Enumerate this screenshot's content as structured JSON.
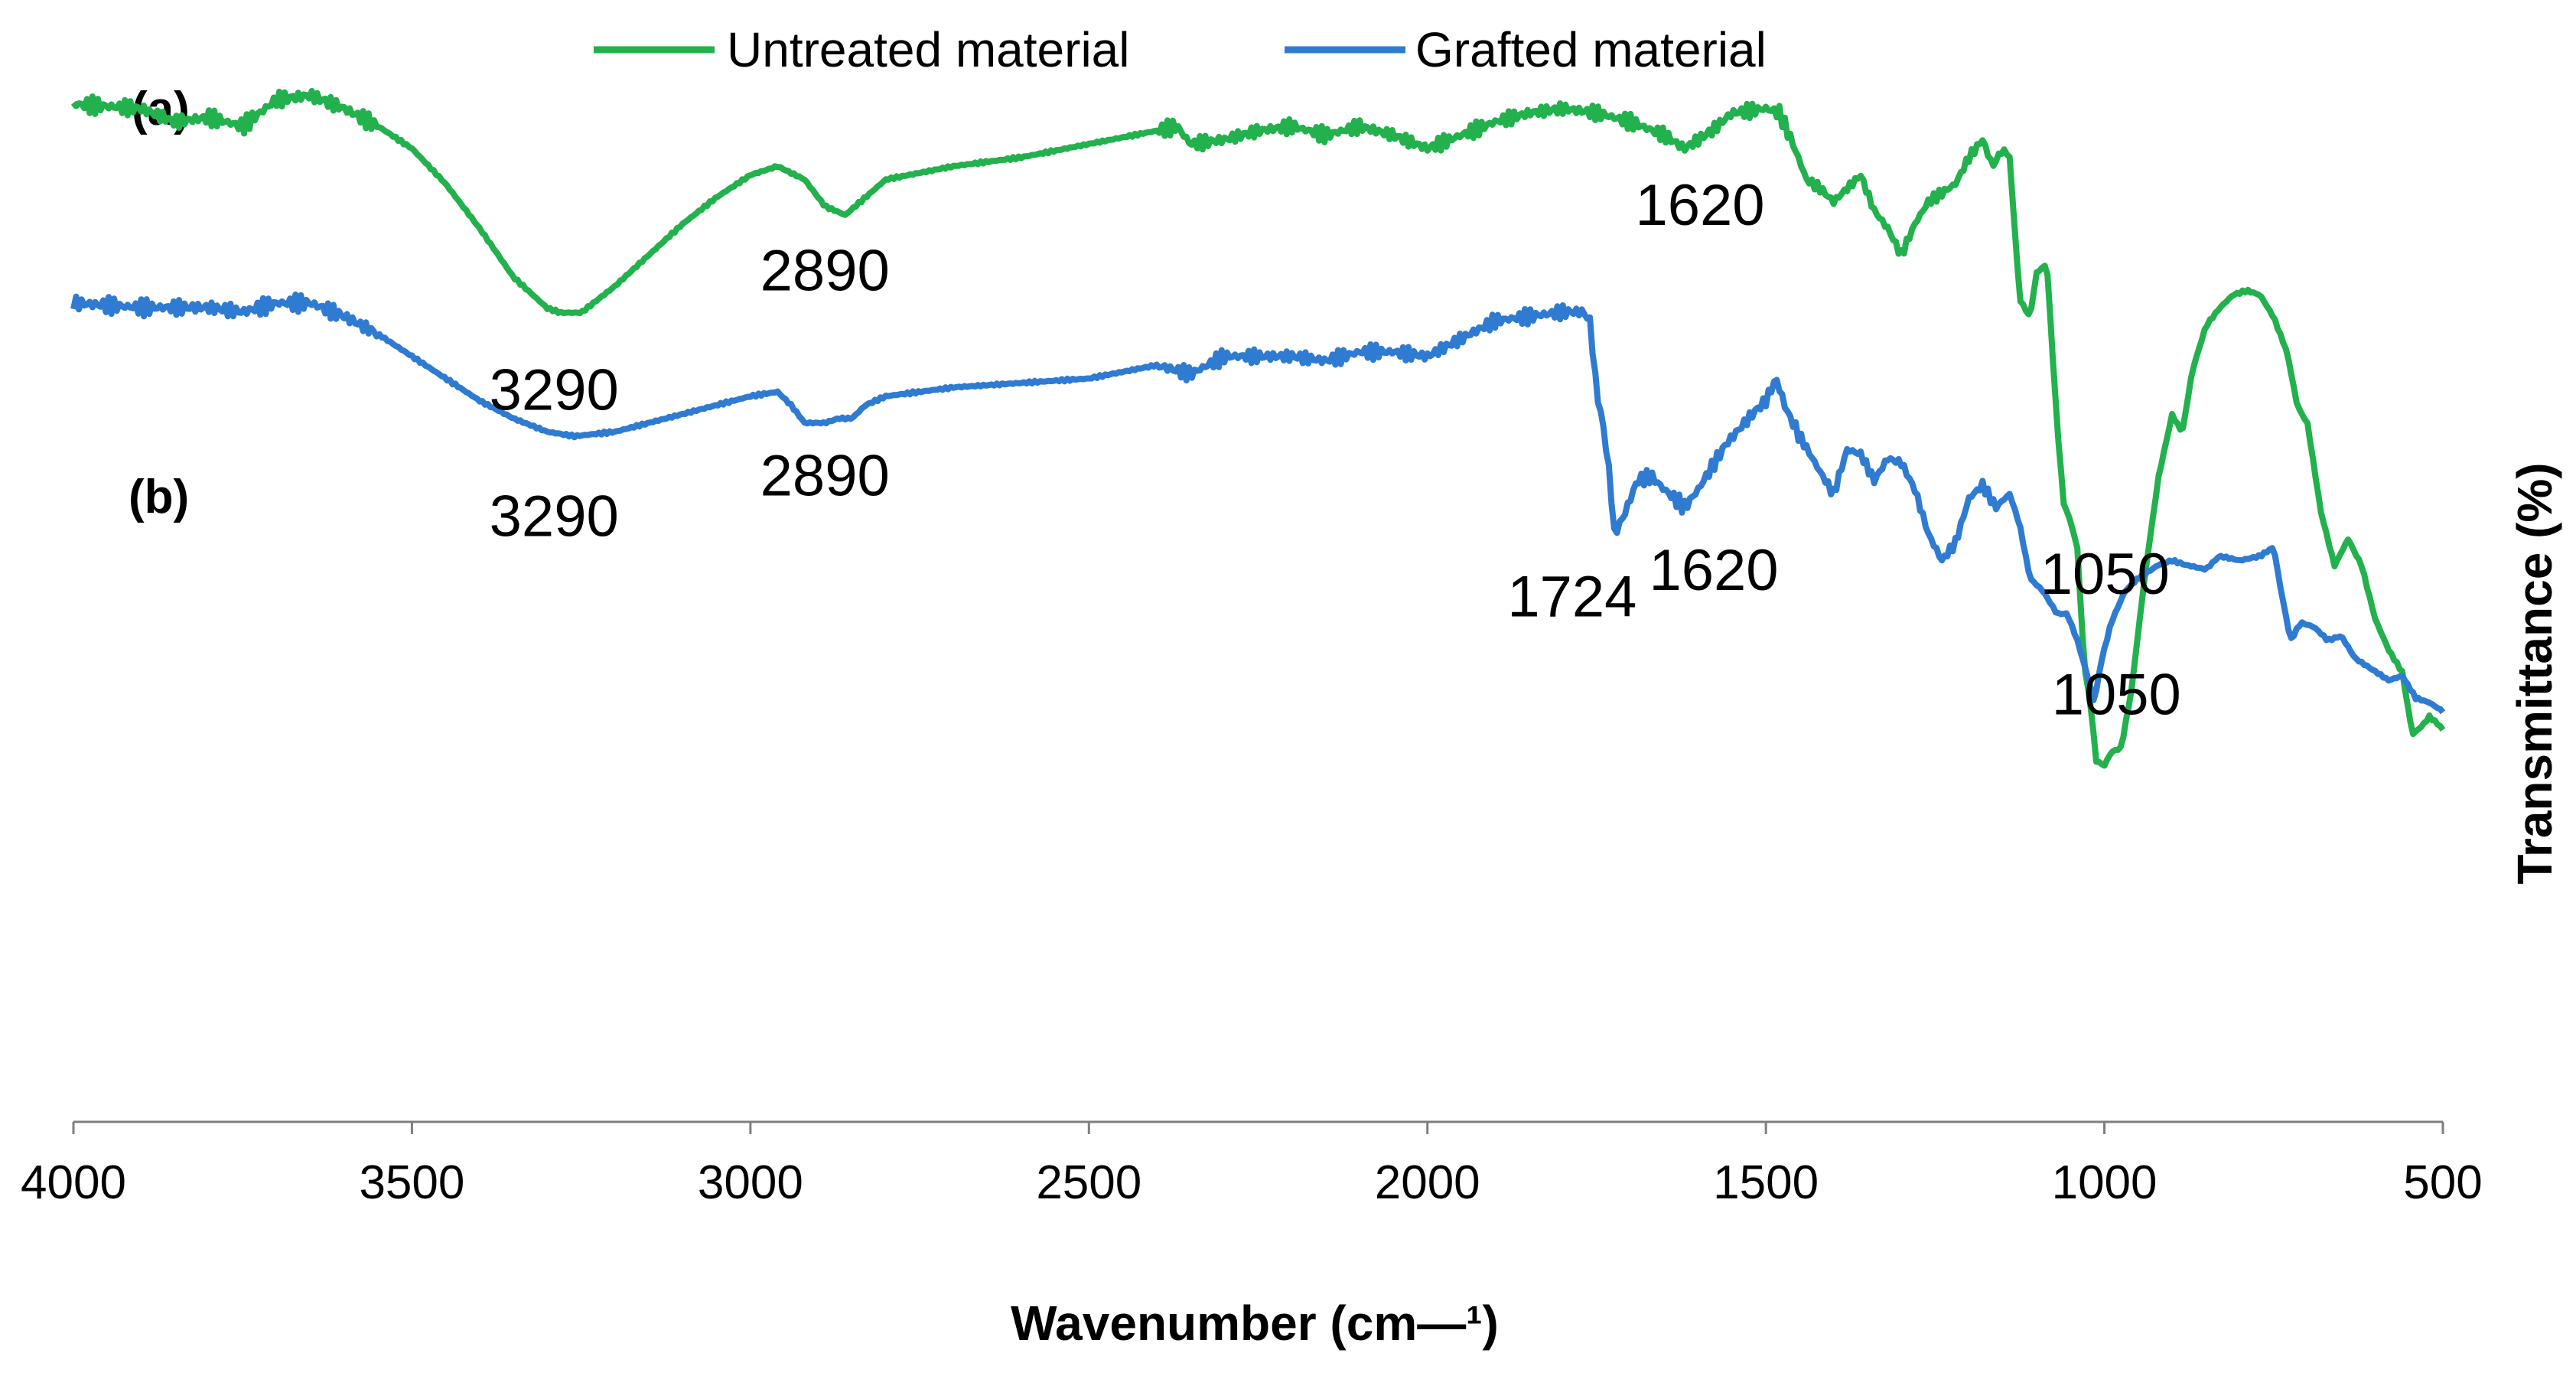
{
  "chart_data": {
    "type": "line",
    "title": "",
    "xlabel": "Wavenumber (cm—¹)",
    "ylabel": "Transmittance (%)",
    "xlim": [
      4000,
      500
    ],
    "x_reversed": true,
    "grid": false,
    "legend_position": "top-center",
    "ticks": {
      "x": [
        {
          "value": 4000,
          "label": "4000"
        },
        {
          "value": 3500,
          "label": "3500"
        },
        {
          "value": 3000,
          "label": "3000"
        },
        {
          "value": 2500,
          "label": "2500"
        },
        {
          "value": 2000,
          "label": "2000"
        },
        {
          "value": 1500,
          "label": "1500"
        },
        {
          "value": 1000,
          "label": "1000"
        },
        {
          "value": 500,
          "label": "500"
        }
      ]
    },
    "ylim": [
      0,
      100
    ],
    "series": [
      {
        "key": "a",
        "name": "Untreated material",
        "color": "#22b14c",
        "panel_label": "(a)",
        "points": [
          [
            4000,
            90.0
          ],
          [
            3900,
            89.5
          ],
          [
            3850,
            88.0
          ],
          [
            3800,
            88.5
          ],
          [
            3750,
            87.5
          ],
          [
            3700,
            90.5
          ],
          [
            3650,
            91.0
          ],
          [
            3600,
            89.5
          ],
          [
            3550,
            87.5
          ],
          [
            3500,
            85.0
          ],
          [
            3450,
            81.0
          ],
          [
            3400,
            76.0
          ],
          [
            3350,
            70.5
          ],
          [
            3300,
            67.0
          ],
          [
            3280,
            66.5
          ],
          [
            3250,
            66.5
          ],
          [
            3200,
            69.5
          ],
          [
            3150,
            73.0
          ],
          [
            3100,
            76.5
          ],
          [
            3050,
            79.5
          ],
          [
            3000,
            82.0
          ],
          [
            2960,
            83.0
          ],
          [
            2920,
            81.5
          ],
          [
            2890,
            78.5
          ],
          [
            2860,
            77.5
          ],
          [
            2830,
            79.5
          ],
          [
            2800,
            81.5
          ],
          [
            2700,
            83.0
          ],
          [
            2600,
            84.0
          ],
          [
            2500,
            85.5
          ],
          [
            2400,
            87.0
          ],
          [
            2370,
            87.5
          ],
          [
            2350,
            85.5
          ],
          [
            2300,
            86.0
          ],
          [
            2250,
            87.0
          ],
          [
            2200,
            87.5
          ],
          [
            2150,
            86.5
          ],
          [
            2100,
            87.5
          ],
          [
            2050,
            86.5
          ],
          [
            2000,
            85.0
          ],
          [
            1950,
            86.5
          ],
          [
            1900,
            88.0
          ],
          [
            1850,
            89.0
          ],
          [
            1800,
            89.5
          ],
          [
            1750,
            89.0
          ],
          [
            1700,
            88.0
          ],
          [
            1650,
            86.5
          ],
          [
            1620,
            85.0
          ],
          [
            1580,
            87.0
          ],
          [
            1550,
            89.0
          ],
          [
            1500,
            89.5
          ],
          [
            1480,
            89.0
          ],
          [
            1460,
            85.5
          ],
          [
            1440,
            81.5
          ],
          [
            1420,
            80.5
          ],
          [
            1400,
            79.0
          ],
          [
            1380,
            80.5
          ],
          [
            1360,
            82.0
          ],
          [
            1340,
            78.0
          ],
          [
            1320,
            76.0
          ],
          [
            1300,
            73.0
          ],
          [
            1280,
            76.5
          ],
          [
            1260,
            79.0
          ],
          [
            1220,
            81.0
          ],
          [
            1200,
            84.0
          ],
          [
            1180,
            86.0
          ],
          [
            1165,
            83.0
          ],
          [
            1150,
            85.0
          ],
          [
            1140,
            84.0
          ],
          [
            1125,
            68.0
          ],
          [
            1110,
            66.0
          ],
          [
            1100,
            71.0
          ],
          [
            1085,
            72.0
          ],
          [
            1070,
            54.0
          ],
          [
            1060,
            45.0
          ],
          [
            1050,
            43.0
          ],
          [
            1040,
            40.0
          ],
          [
            1030,
            27.0
          ],
          [
            1020,
            22.0
          ],
          [
            1012,
            16.0
          ],
          [
            1000,
            15.5
          ],
          [
            990,
            17.0
          ],
          [
            975,
            17.5
          ],
          [
            960,
            24.0
          ],
          [
            940,
            37.0
          ],
          [
            920,
            48.0
          ],
          [
            900,
            55.0
          ],
          [
            885,
            53.0
          ],
          [
            870,
            60.0
          ],
          [
            850,
            65.0
          ],
          [
            830,
            67.0
          ],
          [
            810,
            68.5
          ],
          [
            790,
            69.0
          ],
          [
            770,
            68.5
          ],
          [
            750,
            66.0
          ],
          [
            730,
            62.0
          ],
          [
            715,
            56.0
          ],
          [
            700,
            54.0
          ],
          [
            680,
            44.0
          ],
          [
            660,
            38.0
          ],
          [
            640,
            41.0
          ],
          [
            620,
            38.0
          ],
          [
            600,
            32.0
          ],
          [
            580,
            28.5
          ],
          [
            560,
            26.0
          ],
          [
            545,
            19.0
          ],
          [
            530,
            20.0
          ],
          [
            520,
            21.0
          ],
          [
            505,
            20.0
          ],
          [
            500,
            19.5
          ]
        ],
        "peaks": [
          {
            "wavenumber": 3290,
            "label": "3290"
          },
          {
            "wavenumber": 2890,
            "label": "2890"
          },
          {
            "wavenumber": 1620,
            "label": "1620"
          },
          {
            "wavenumber": 1050,
            "label": "1050"
          }
        ]
      },
      {
        "key": "b",
        "name": "Grafted material",
        "color": "#2f7bd1",
        "panel_label": "(b)",
        "points": [
          [
            4000,
            90.0
          ],
          [
            3900,
            89.5
          ],
          [
            3800,
            89.5
          ],
          [
            3750,
            89.0
          ],
          [
            3700,
            90.0
          ],
          [
            3650,
            90.0
          ],
          [
            3600,
            88.5
          ],
          [
            3550,
            86.5
          ],
          [
            3500,
            84.0
          ],
          [
            3450,
            81.5
          ],
          [
            3400,
            79.0
          ],
          [
            3350,
            77.0
          ],
          [
            3300,
            75.5
          ],
          [
            3260,
            75.0
          ],
          [
            3200,
            75.5
          ],
          [
            3150,
            76.5
          ],
          [
            3100,
            77.5
          ],
          [
            3050,
            78.5
          ],
          [
            3000,
            79.5
          ],
          [
            2960,
            80.0
          ],
          [
            2940,
            78.5
          ],
          [
            2920,
            76.5
          ],
          [
            2890,
            76.5
          ],
          [
            2870,
            77.0
          ],
          [
            2850,
            77.0
          ],
          [
            2830,
            78.5
          ],
          [
            2800,
            79.5
          ],
          [
            2700,
            80.5
          ],
          [
            2600,
            81.0
          ],
          [
            2500,
            81.5
          ],
          [
            2400,
            83.0
          ],
          [
            2350,
            82.0
          ],
          [
            2300,
            84.0
          ],
          [
            2250,
            84.0
          ],
          [
            2200,
            84.0
          ],
          [
            2150,
            83.5
          ],
          [
            2100,
            84.5
          ],
          [
            2050,
            84.5
          ],
          [
            2000,
            84.0
          ],
          [
            1950,
            86.0
          ],
          [
            1900,
            88.0
          ],
          [
            1850,
            88.5
          ],
          [
            1800,
            89.0
          ],
          [
            1770,
            89.0
          ],
          [
            1760,
            88.0
          ],
          [
            1750,
            80.0
          ],
          [
            1740,
            76.0
          ],
          [
            1730,
            70.0
          ],
          [
            1724,
            64.0
          ],
          [
            1710,
            66.0
          ],
          [
            1690,
            70.0
          ],
          [
            1670,
            70.5
          ],
          [
            1650,
            69.0
          ],
          [
            1620,
            67.0
          ],
          [
            1600,
            69.0
          ],
          [
            1560,
            74.0
          ],
          [
            1520,
            77.5
          ],
          [
            1500,
            79.0
          ],
          [
            1485,
            81.5
          ],
          [
            1470,
            78.0
          ],
          [
            1450,
            75.0
          ],
          [
            1420,
            71.0
          ],
          [
            1400,
            68.5
          ],
          [
            1380,
            73.5
          ],
          [
            1360,
            73.0
          ],
          [
            1340,
            70.0
          ],
          [
            1320,
            72.5
          ],
          [
            1300,
            72.0
          ],
          [
            1280,
            69.0
          ],
          [
            1260,
            64.0
          ],
          [
            1240,
            61.0
          ],
          [
            1220,
            63.0
          ],
          [
            1200,
            68.0
          ],
          [
            1180,
            69.5
          ],
          [
            1160,
            67.0
          ],
          [
            1140,
            68.5
          ],
          [
            1125,
            65.0
          ],
          [
            1110,
            59.0
          ],
          [
            1090,
            57.5
          ],
          [
            1070,
            55.0
          ],
          [
            1055,
            55.0
          ],
          [
            1040,
            52.0
          ],
          [
            1025,
            48.0
          ],
          [
            1015,
            45.0
          ],
          [
            1005,
            49.5
          ],
          [
            990,
            54.0
          ],
          [
            970,
            57.5
          ],
          [
            950,
            59.0
          ],
          [
            920,
            60.5
          ],
          [
            900,
            61.0
          ],
          [
            880,
            60.5
          ],
          [
            850,
            60.0
          ],
          [
            830,
            61.5
          ],
          [
            800,
            61.0
          ],
          [
            770,
            61.5
          ],
          [
            750,
            62.5
          ],
          [
            740,
            58.0
          ],
          [
            725,
            52.0
          ],
          [
            710,
            54.0
          ],
          [
            690,
            53.5
          ],
          [
            670,
            52.0
          ],
          [
            650,
            52.5
          ],
          [
            630,
            50.0
          ],
          [
            600,
            48.5
          ],
          [
            580,
            47.5
          ],
          [
            560,
            48.0
          ],
          [
            540,
            45.5
          ],
          [
            520,
            45.0
          ],
          [
            500,
            44.0
          ]
        ],
        "peaks": [
          {
            "wavenumber": 3290,
            "label": "3290"
          },
          {
            "wavenumber": 2890,
            "label": "2890"
          },
          {
            "wavenumber": 1724,
            "label": "1724"
          },
          {
            "wavenumber": 1620,
            "label": "1620"
          },
          {
            "wavenumber": 1050,
            "label": "1050"
          }
        ]
      }
    ]
  }
}
